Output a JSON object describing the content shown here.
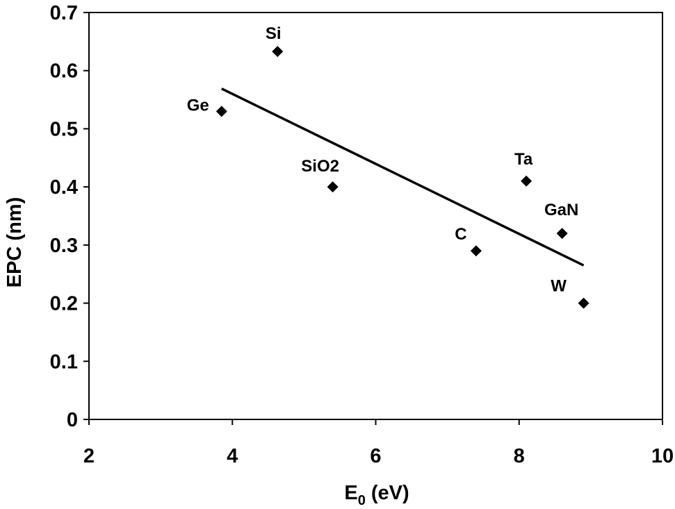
{
  "chart_data": {
    "type": "scatter",
    "title": "",
    "xlabel_main": "E",
    "xlabel_sub": "0",
    "xlabel_unit": " (eV)",
    "ylabel": "EPC (nm)",
    "xlim": [
      2,
      10
    ],
    "ylim": [
      0,
      0.7
    ],
    "xticks": [
      "2",
      "4",
      "6",
      "8",
      "10"
    ],
    "yticks": [
      "0",
      "0.1",
      "0.2",
      "0.3",
      "0.4",
      "0.5",
      "0.6",
      "0.7"
    ],
    "grid": false,
    "legend": "none",
    "marker": "diamond",
    "marker_color": "#000000",
    "points": [
      {
        "label": "Ge",
        "x": 3.85,
        "y": 0.53
      },
      {
        "label": "Si",
        "x": 4.63,
        "y": 0.633
      },
      {
        "label": "SiO2",
        "x": 5.4,
        "y": 0.4
      },
      {
        "label": "C",
        "x": 7.4,
        "y": 0.29
      },
      {
        "label": "Ta",
        "x": 8.1,
        "y": 0.41
      },
      {
        "label": "GaN",
        "x": 8.6,
        "y": 0.32
      },
      {
        "label": "W",
        "x": 8.9,
        "y": 0.2
      }
    ],
    "trendline": {
      "type": "linear",
      "x": [
        3.85,
        8.9
      ],
      "y": [
        0.569,
        0.265
      ],
      "color": "#000000"
    }
  }
}
